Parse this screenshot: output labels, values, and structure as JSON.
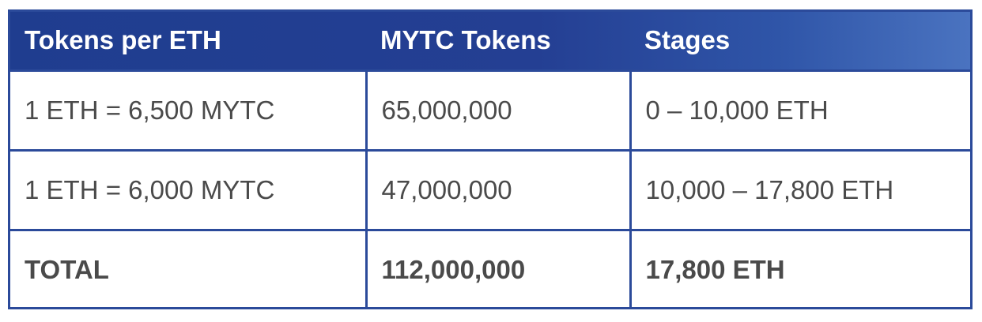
{
  "table": {
    "headers": [
      "Tokens per ETH",
      "MYTC Tokens",
      "Stages"
    ],
    "rows": [
      [
        "1 ETH = 6,500 MYTC",
        "65,000,000",
        "0 – 10,000 ETH"
      ],
      [
        "1 ETH = 6,000 MYTC",
        "47,000,000",
        "10,000 – 17,800 ETH"
      ]
    ],
    "total": [
      "TOTAL",
      "112,000,000",
      "17,800 ETH"
    ]
  },
  "colors": {
    "header_bg": "#243f93",
    "border": "#2b4a9a",
    "header_text": "#ffffff",
    "body_text": "#4a4a4a"
  }
}
